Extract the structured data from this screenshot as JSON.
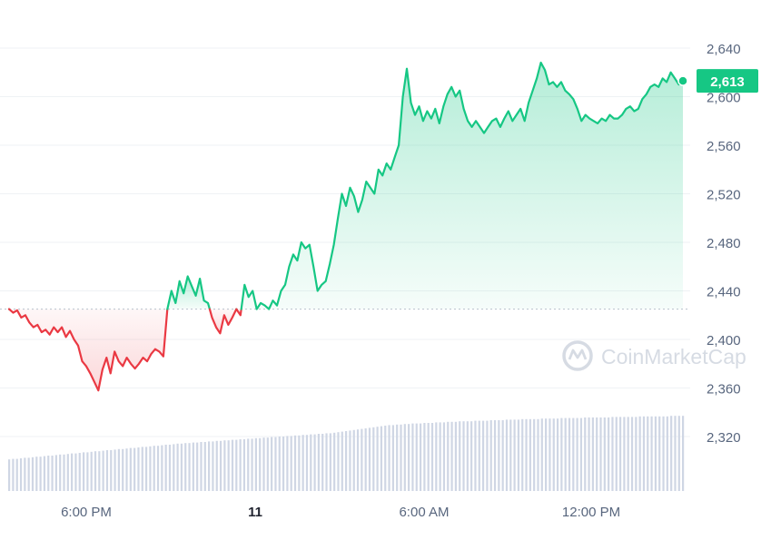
{
  "chart_data": {
    "type": "line",
    "x_tick_labels": [
      "6:00 PM",
      "11",
      "6:00 AM",
      "12:00 PM"
    ],
    "y_tick_labels": [
      "2,640",
      "2,600",
      "2,560",
      "2,520",
      "2,480",
      "2,440",
      "2,400",
      "2,360",
      "2,320"
    ],
    "ylim": [
      2290,
      2650
    ],
    "baseline_value": 2425,
    "series": [
      {
        "values": [
          2425,
          2422,
          2424,
          2418,
          2420,
          2414,
          2410,
          2412,
          2406,
          2408,
          2404,
          2410,
          2406,
          2410,
          2402,
          2407,
          2400,
          2395,
          2382,
          2378,
          2372,
          2365,
          2358,
          2375,
          2385,
          2372,
          2390,
          2382,
          2378,
          2385,
          2380,
          2376,
          2380,
          2385,
          2382,
          2388,
          2392,
          2390,
          2386,
          2425,
          2440,
          2430,
          2448,
          2438,
          2452,
          2444,
          2436,
          2450,
          2432,
          2430,
          2418,
          2410,
          2405,
          2420,
          2412,
          2418,
          2425,
          2420,
          2445,
          2435,
          2440,
          2425,
          2430,
          2428,
          2425,
          2432,
          2428,
          2440,
          2445,
          2460,
          2470,
          2465,
          2480,
          2475,
          2478,
          2460,
          2440,
          2445,
          2448,
          2462,
          2478,
          2500,
          2520,
          2510,
          2525,
          2518,
          2505,
          2515,
          2530,
          2525,
          2520,
          2540,
          2535,
          2545,
          2540,
          2550,
          2560,
          2600,
          2623,
          2595,
          2585,
          2592,
          2580,
          2588,
          2582,
          2590,
          2578,
          2592,
          2602,
          2608,
          2600,
          2605,
          2590,
          2580,
          2575,
          2580,
          2575,
          2570,
          2575,
          2580,
          2582,
          2575,
          2582,
          2588,
          2580,
          2585,
          2590,
          2580,
          2595,
          2605,
          2615,
          2628,
          2622,
          2610,
          2612,
          2608,
          2612,
          2605,
          2602,
          2598,
          2590,
          2580,
          2585,
          2582,
          2580,
          2578,
          2582,
          2580,
          2585,
          2582,
          2582,
          2585,
          2590,
          2592,
          2588,
          2590,
          2598,
          2602,
          2608,
          2610,
          2608,
          2615,
          2612,
          2620,
          2615,
          2610,
          2613
        ]
      }
    ],
    "volume": [
      58,
      59,
      59,
      60,
      61,
      61,
      62,
      63,
      63,
      64,
      65,
      65,
      66,
      67,
      67,
      68,
      69,
      69,
      70,
      71,
      71,
      72,
      73,
      73,
      74,
      75,
      75,
      76,
      77,
      77,
      78,
      79,
      79,
      80,
      81,
      81,
      82,
      83,
      83,
      84,
      85,
      85,
      86,
      87,
      87,
      88,
      88,
      89,
      89,
      90,
      90,
      91,
      91,
      92,
      92,
      93,
      93,
      94,
      94,
      95,
      95,
      96,
      96,
      97,
      97,
      98,
      98,
      99,
      99,
      100,
      100,
      101,
      101,
      102,
      102,
      103,
      103,
      104,
      104,
      105,
      105,
      106,
      106,
      107,
      108,
      109,
      110,
      111,
      112,
      113,
      114,
      115,
      116,
      117,
      118,
      119,
      120,
      121,
      121,
      122,
      122,
      123,
      123,
      124,
      124,
      124,
      125,
      125,
      125,
      126,
      126,
      126,
      127,
      127,
      127,
      128,
      128,
      128,
      128,
      129,
      129,
      129,
      129,
      130,
      130,
      130,
      130,
      131,
      131,
      131,
      131,
      132,
      132,
      132,
      132,
      132,
      133,
      133,
      133,
      133,
      133,
      134,
      134,
      134,
      134,
      134,
      134,
      135,
      135,
      135,
      135,
      135,
      135,
      135,
      136,
      136,
      136,
      136,
      136,
      136,
      136,
      137,
      137,
      137,
      137,
      137,
      137,
      137,
      137,
      138,
      138,
      138,
      138
    ],
    "current_value_label": "2,613"
  },
  "watermark": "CoinMarketCap",
  "colors": {
    "up": "#16c784",
    "down": "#ea3943",
    "grid": "#eff2f5",
    "axis_text": "#58667e",
    "badge_text": "#ffffff",
    "volume": "#cfd6e4"
  }
}
